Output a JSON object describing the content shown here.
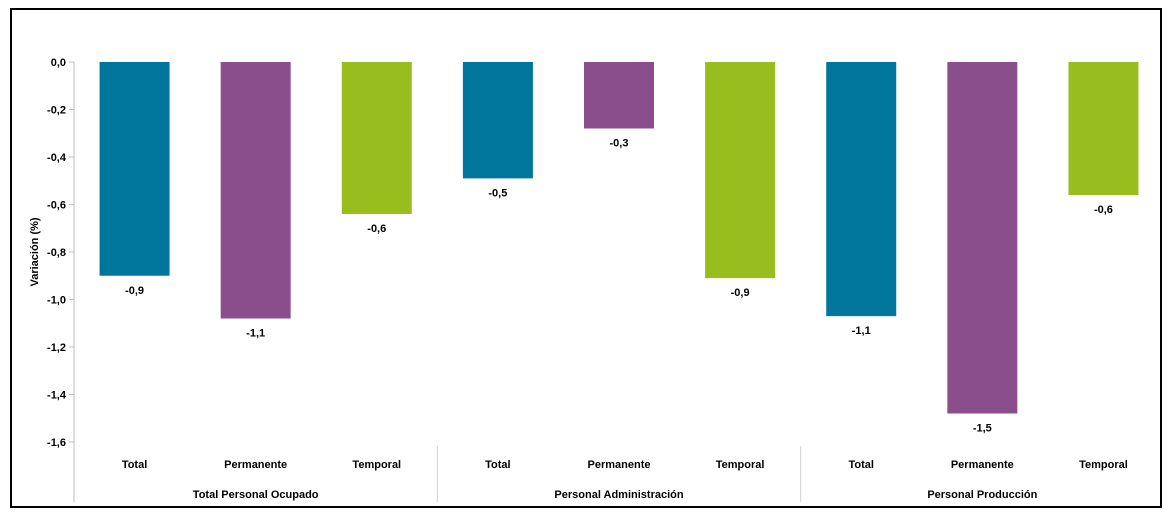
{
  "chart_data": {
    "type": "bar",
    "ylabel": "Variación (%)",
    "ylim": [
      -1.6,
      0.0
    ],
    "yticks": [
      0.0,
      -0.2,
      -0.4,
      -0.6,
      -0.8,
      -1.0,
      -1.2,
      -1.4,
      -1.6
    ],
    "ytick_labels": [
      "0,0",
      "-0,2",
      "-0,4",
      "-0,6",
      "-0,8",
      "-1,0",
      "-1,2",
      "-1,4",
      "-1,6"
    ],
    "groups": [
      {
        "name": "Total Personal Ocupado",
        "bars": [
          {
            "category": "Total",
            "value": -0.9,
            "label": "-0,9"
          },
          {
            "category": "Permanente",
            "value": -1.08,
            "label": "-1,1"
          },
          {
            "category": "Temporal",
            "value": -0.64,
            "label": "-0,6"
          }
        ]
      },
      {
        "name": "Personal Administración",
        "bars": [
          {
            "category": "Total",
            "value": -0.49,
            "label": "-0,5"
          },
          {
            "category": "Permanente",
            "value": -0.28,
            "label": "-0,3"
          },
          {
            "category": "Temporal",
            "value": -0.91,
            "label": "-0,9"
          }
        ]
      },
      {
        "name": "Personal Producción",
        "bars": [
          {
            "category": "Total",
            "value": -1.07,
            "label": "-1,1"
          },
          {
            "category": "Permanente",
            "value": -1.48,
            "label": "-1,5"
          },
          {
            "category": "Temporal",
            "value": -0.56,
            "label": "-0,6"
          }
        ]
      }
    ],
    "colors": {
      "Total": "#00769c",
      "Permanente": "#8a4e8c",
      "Temporal": "#97bd1f"
    },
    "grid": false,
    "legend": "none"
  }
}
